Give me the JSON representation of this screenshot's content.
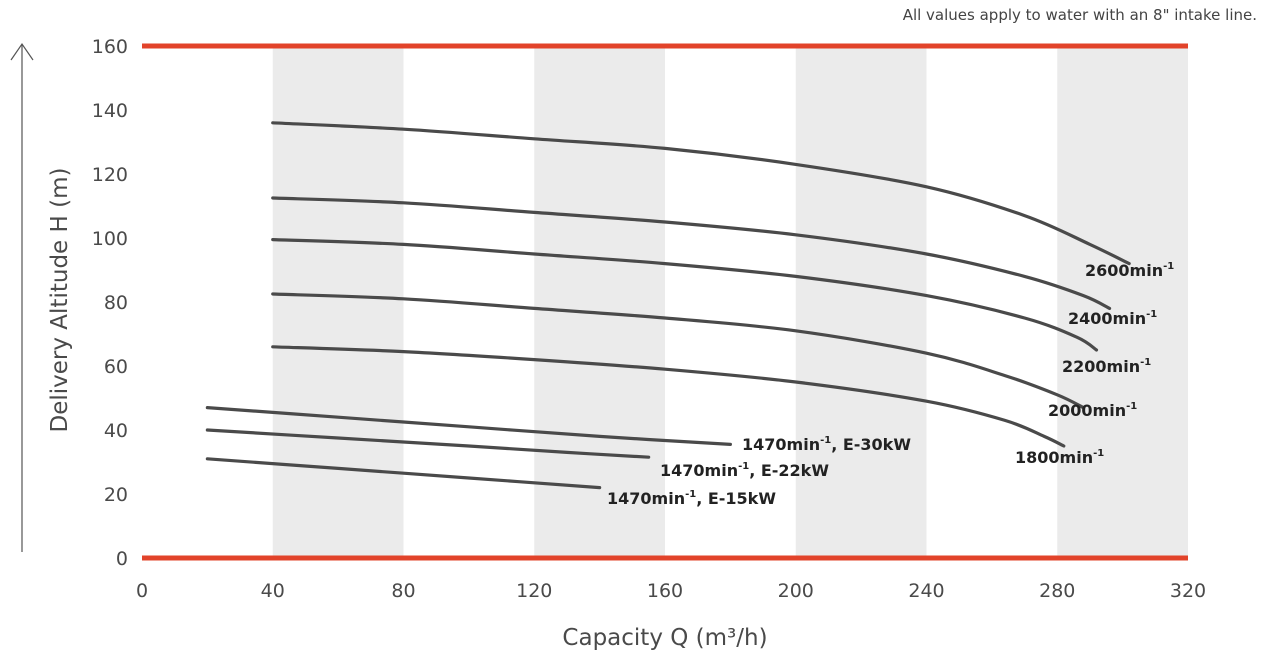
{
  "note": "All values apply to water with an 8\" intake line.",
  "chart_data": {
    "type": "line",
    "title": "",
    "xlabel": "Capacity Q (m³/h)",
    "ylabel": "Delivery Altitude H (m)",
    "xlim": [
      0,
      320
    ],
    "ylim": [
      0,
      160
    ],
    "xticks": [
      0,
      40,
      80,
      120,
      160,
      200,
      240,
      280,
      320
    ],
    "yticks": [
      0,
      20,
      40,
      60,
      80,
      100,
      120,
      140,
      160
    ],
    "shaded_bands": [
      [
        40,
        80
      ],
      [
        120,
        160
      ],
      [
        200,
        240
      ],
      [
        280,
        320
      ]
    ],
    "limit_lines": [
      0,
      160
    ],
    "colors": {
      "curve": "#4a4a4a",
      "limit": "#e2432a",
      "band": "#ebebeb",
      "text": "#4a4a4a"
    },
    "series": [
      {
        "name": "2600min-1",
        "label_main": "2600min",
        "label_sup": "-1",
        "x": [
          40,
          80,
          120,
          160,
          200,
          240,
          270,
          290,
          302
        ],
        "y": [
          136,
          134,
          131,
          128,
          123,
          116,
          107,
          98,
          92
        ]
      },
      {
        "name": "2400min-1",
        "label_main": "2400min",
        "label_sup": "-1",
        "x": [
          40,
          80,
          120,
          160,
          200,
          240,
          270,
          288,
          296
        ],
        "y": [
          112.5,
          111,
          108,
          105,
          101,
          95,
          88,
          82,
          78
        ]
      },
      {
        "name": "2200min-1",
        "label_main": "2200min",
        "label_sup": "-1",
        "x": [
          40,
          80,
          120,
          160,
          200,
          240,
          270,
          286,
          292
        ],
        "y": [
          99.5,
          98,
          95,
          92,
          88,
          82,
          75,
          69,
          65
        ]
      },
      {
        "name": "2000min-1",
        "label_main": "2000min",
        "label_sup": "-1",
        "x": [
          40,
          80,
          120,
          160,
          200,
          240,
          264,
          280,
          288
        ],
        "y": [
          82.5,
          81,
          78,
          75,
          71,
          64,
          57,
          51,
          47
        ]
      },
      {
        "name": "1800min-1",
        "label_main": "1800min",
        "label_sup": "-1",
        "x": [
          40,
          80,
          120,
          160,
          200,
          240,
          264,
          276,
          282
        ],
        "y": [
          66,
          64.5,
          62,
          59,
          55,
          49,
          43,
          38,
          35
        ]
      },
      {
        "name": "1470min-1, E-30kW",
        "label_main": "1470min",
        "label_sup": "-1",
        "label_tail": ", E-30kW",
        "x": [
          20,
          60,
          100,
          140,
          180
        ],
        "y": [
          47,
          44,
          41,
          38,
          35.5
        ]
      },
      {
        "name": "1470min-1, E-22kW",
        "label_main": "1470min",
        "label_sup": "-1",
        "label_tail": ", E-22kW",
        "x": [
          20,
          60,
          100,
          130,
          155
        ],
        "y": [
          40,
          37.5,
          35,
          33,
          31.5
        ]
      },
      {
        "name": "1470min-1, E-15kW",
        "label_main": "1470min",
        "label_sup": "-1",
        "label_tail": ", E-15kW",
        "x": [
          20,
          60,
          100,
          140
        ],
        "y": [
          31,
          28,
          25,
          22
        ]
      }
    ]
  }
}
